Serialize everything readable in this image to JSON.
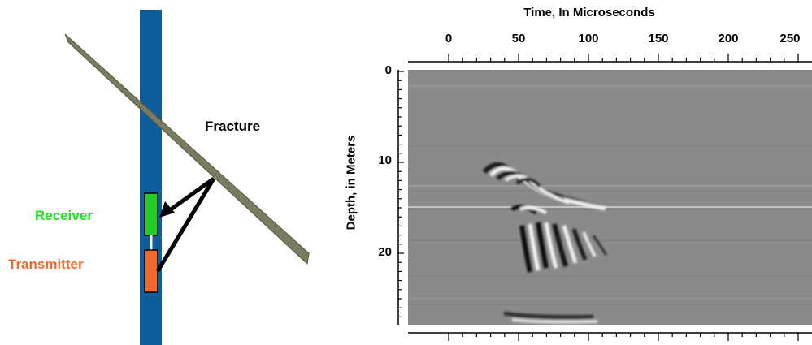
{
  "diagram": {
    "labels": {
      "fracture": "Fracture",
      "receiver": "Receiver",
      "transmitter": "Transmitter"
    },
    "colors": {
      "borehole": "#0f5e9c",
      "fracture": "#7b7b62",
      "receiver": "#22cc22",
      "transmitter": "#f26a2e",
      "receiver_text": "#22dd22",
      "transmitter_text": "#f26a2e"
    }
  },
  "radargram": {
    "x_title": "Time, In Microseconds",
    "y_title": "Depth, in Meters",
    "x_ticks": [
      "0",
      "50",
      "100",
      "150",
      "200",
      "250"
    ],
    "y_ticks": [
      "0",
      "10",
      "20"
    ],
    "background_color": "#8a8a8a"
  }
}
